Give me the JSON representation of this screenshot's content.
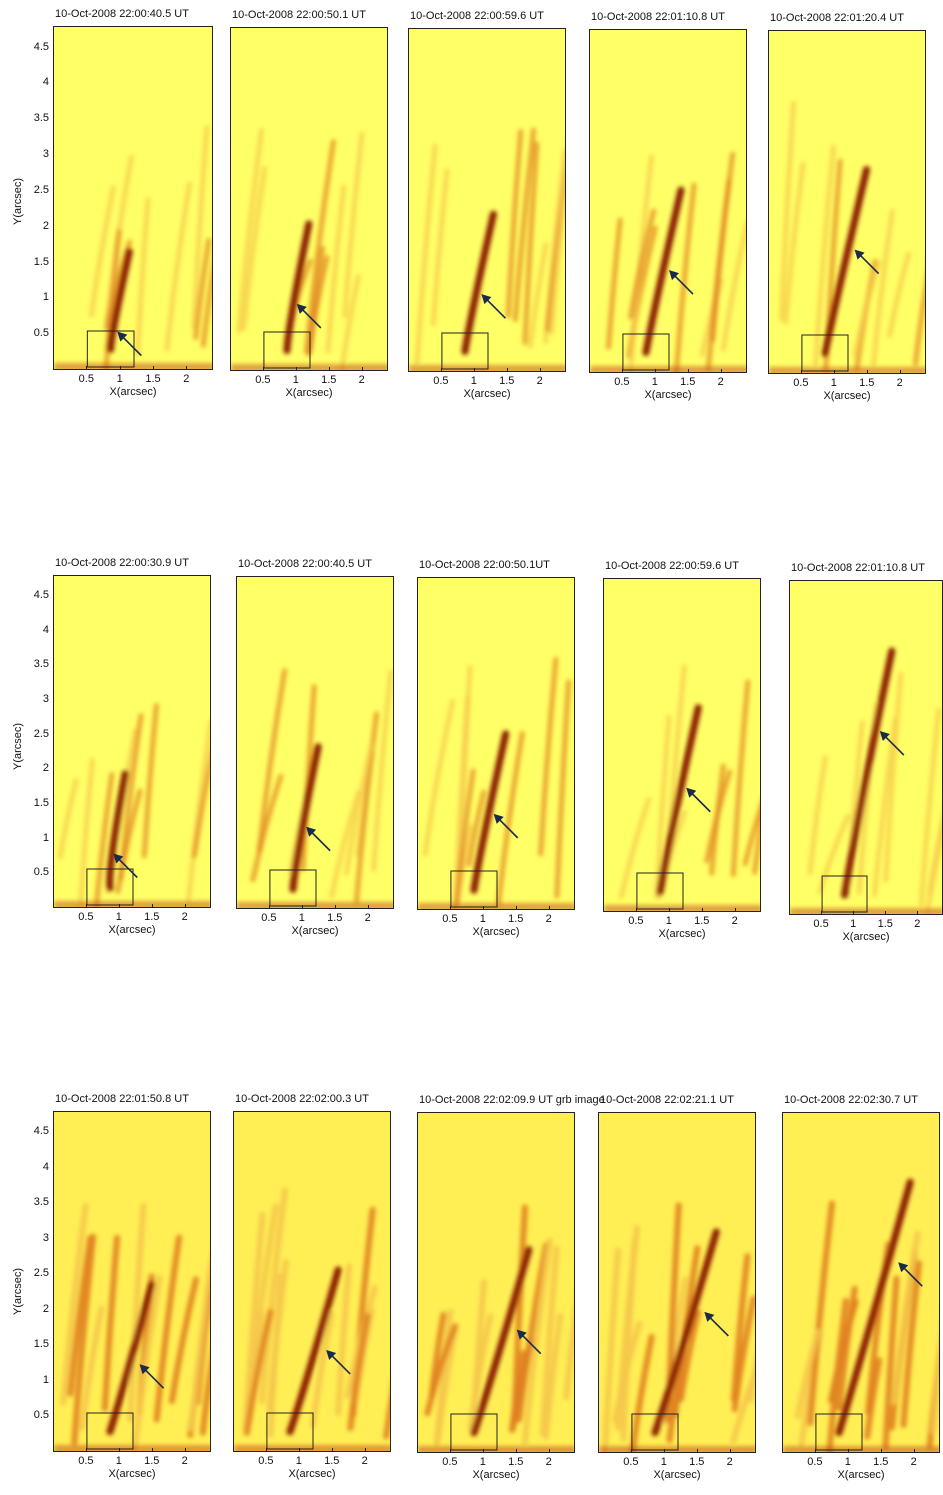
{
  "x_axis": {
    "label": "X(arcsec)",
    "ticks": [
      "0.5",
      "1",
      "1.5",
      "2"
    ],
    "range": [
      0,
      2.4
    ]
  },
  "y_axis": {
    "label": "Y(arcsec)",
    "ticks": [
      "0.5",
      "1",
      "1.5",
      "2",
      "2.5",
      "3",
      "3.5",
      "4",
      "4.5"
    ],
    "range": [
      0,
      4.8
    ]
  },
  "colors": {
    "background": "#ffff66",
    "mid": "#f5c74a",
    "dark": "#8b1a00",
    "arrow": "#1a2a4a",
    "box": "#222222"
  },
  "rows": [
    {
      "panels": [
        {
          "title": "10-Oct-2008 22:00:40.5 UT",
          "arrow": [
            0.95,
            0.55
          ]
        },
        {
          "title": "10-Oct-2008 22:00:50.1 UT",
          "arrow": [
            1.0,
            0.95
          ]
        },
        {
          "title": "10-Oct-2008 22:00:59.6 UT",
          "arrow": [
            1.1,
            1.1
          ]
        },
        {
          "title": "10-Oct-2008 22:01:10.8 UT",
          "arrow": [
            1.2,
            1.45
          ]
        },
        {
          "title": "10-Oct-2008 22:01:20.4 UT",
          "arrow": [
            1.3,
            1.75
          ]
        }
      ]
    },
    {
      "panels": [
        {
          "title": "10-Oct-2008 22:00:30.9 UT",
          "arrow": [
            0.9,
            0.8
          ]
        },
        {
          "title": "10-Oct-2008 22:00:40.5 UT",
          "arrow": [
            1.05,
            1.2
          ]
        },
        {
          "title": "10-Oct-2008 22:00:50.1UT",
          "arrow": [
            1.15,
            1.4
          ]
        },
        {
          "title": "10-Oct-2008 22:00:59.6 UT",
          "arrow": [
            1.25,
            1.8
          ]
        },
        {
          "title": "10-Oct-2008 22:01:10.8 UT",
          "arrow": [
            1.4,
            2.65
          ]
        }
      ]
    },
    {
      "panels": [
        {
          "title": "10-Oct-2008 22:01:50.8 UT",
          "arrow": [
            1.3,
            1.25
          ]
        },
        {
          "title": "10-Oct-2008 22:02:00.3 UT",
          "arrow": [
            1.4,
            1.45
          ]
        },
        {
          "title": "10-Oct-2008 22:02:09.9 UT grb image",
          "arrow": [
            1.5,
            1.75
          ]
        },
        {
          "title": "10-Oct-2008 22:02:21.1 UT",
          "arrow": [
            1.6,
            2.0
          ]
        },
        {
          "title": "10-Oct-2008 22:02:30.7 UT",
          "arrow": [
            1.75,
            2.7
          ]
        }
      ]
    }
  ]
}
